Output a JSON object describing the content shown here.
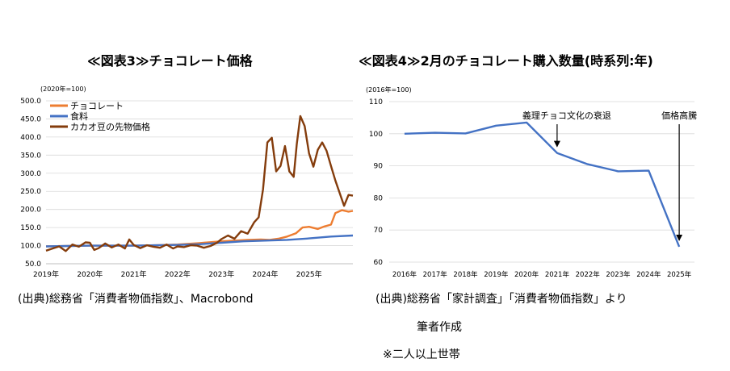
{
  "left": {
    "title": "≪図表3≫チョコレート価格",
    "source": "(出典)総務省「消費者物価指数」、Macrobond"
  },
  "right": {
    "title": "≪図表4≫2月のチョコレート購入数量(時系列:年)",
    "source_line1": "(出典)総務省「家計調査」「消費者物価指数」より",
    "source_line2": "筆者作成",
    "note": "※二人以上世帯"
  },
  "chart_data": [
    {
      "type": "line",
      "title": "≪図表3≫チョコレート価格",
      "unit_label": "(2020年=100)",
      "ylim": [
        50,
        500
      ],
      "yticks": [
        "500.0",
        "450.0",
        "400.0",
        "350.0",
        "300.0",
        "250.0",
        "200.0",
        "150.0",
        "100.0",
        "50.0"
      ],
      "ytick_values": [
        500,
        450,
        400,
        350,
        300,
        250,
        200,
        150,
        100,
        50
      ],
      "xlim": [
        2019,
        2026
      ],
      "xticks": [
        "2019年",
        "2020年",
        "2021年",
        "2022年",
        "2023年",
        "2024年",
        "2025年"
      ],
      "xtick_values": [
        2019,
        2020,
        2021,
        2022,
        2023,
        2024,
        2025
      ],
      "legend_position": "top-left",
      "series": [
        {
          "name": "チョコレート",
          "color": "#ed7d31",
          "x": [
            2019.0,
            2019.5,
            2020.0,
            2020.5,
            2021.0,
            2021.5,
            2022.0,
            2022.5,
            2022.8,
            2023.0,
            2023.3,
            2023.6,
            2023.9,
            2024.1,
            2024.3,
            2024.5,
            2024.7,
            2024.85,
            2025.0,
            2025.2,
            2025.35,
            2025.5,
            2025.6,
            2025.75,
            2025.9,
            2026.0
          ],
          "values": [
            98,
            99,
            100,
            100,
            100,
            101,
            103,
            107,
            110,
            112,
            114,
            116,
            117,
            116,
            119,
            125,
            134,
            150,
            152,
            146,
            153,
            158,
            190,
            198,
            194,
            196
          ]
        },
        {
          "name": "食料",
          "color": "#4472c4",
          "x": [
            2019.0,
            2019.5,
            2020.0,
            2020.5,
            2021.0,
            2021.5,
            2022.0,
            2022.5,
            2023.0,
            2023.5,
            2024.0,
            2024.5,
            2025.0,
            2025.5,
            2026.0
          ],
          "values": [
            98,
            99,
            100,
            100,
            100,
            101,
            102,
            104,
            108,
            112,
            114,
            116,
            120,
            125,
            128
          ]
        },
        {
          "name": "カカオ豆の先物価格",
          "color": "#843c0c",
          "x": [
            2019.0,
            2019.15,
            2019.3,
            2019.45,
            2019.6,
            2019.75,
            2019.9,
            2020.0,
            2020.1,
            2020.2,
            2020.35,
            2020.5,
            2020.65,
            2020.8,
            2020.9,
            2021.0,
            2021.15,
            2021.3,
            2021.45,
            2021.6,
            2021.75,
            2021.9,
            2022.0,
            2022.15,
            2022.3,
            2022.45,
            2022.6,
            2022.75,
            2022.9,
            2023.0,
            2023.15,
            2023.3,
            2023.45,
            2023.6,
            2023.75,
            2023.85,
            2023.95,
            2024.05,
            2024.15,
            2024.25,
            2024.35,
            2024.45,
            2024.55,
            2024.65,
            2024.72,
            2024.8,
            2024.9,
            2025.0,
            2025.1,
            2025.2,
            2025.3,
            2025.4,
            2025.5,
            2025.6,
            2025.7,
            2025.8,
            2025.9,
            2026.0
          ],
          "values": [
            86,
            92,
            98,
            85,
            103,
            97,
            109,
            108,
            88,
            93,
            106,
            95,
            103,
            92,
            117,
            102,
            93,
            101,
            97,
            94,
            103,
            92,
            98,
            96,
            101,
            100,
            94,
            99,
            108,
            118,
            128,
            119,
            140,
            133,
            165,
            178,
            255,
            385,
            398,
            305,
            320,
            375,
            305,
            290,
            380,
            458,
            430,
            355,
            318,
            365,
            385,
            362,
            320,
            280,
            245,
            210,
            240,
            238
          ]
        }
      ]
    },
    {
      "type": "line",
      "title": "≪図表4≫2月のチョコレート購入数量(時系列:年)",
      "unit_label": "(2016年=100)",
      "ylim": [
        60,
        110
      ],
      "yticks": [
        "110",
        "100",
        "90",
        "80",
        "70",
        "60"
      ],
      "ytick_values": [
        110,
        100,
        90,
        80,
        70,
        60
      ],
      "categories": [
        "2016年",
        "2017年",
        "2018年",
        "2019年",
        "2020年",
        "2021年",
        "2022年",
        "2023年",
        "2024年",
        "2025年"
      ],
      "series": [
        {
          "name": "チョコレート購入数量",
          "color": "#4472c4",
          "values": [
            100.0,
            100.3,
            100.1,
            102.5,
            103.5,
            94.0,
            90.5,
            88.3,
            88.5,
            64.8
          ]
        }
      ],
      "annotations": [
        {
          "text": "義理チョコ文化の衰退",
          "category_index": 5
        },
        {
          "text": "価格高騰",
          "category_index": 9
        }
      ]
    }
  ]
}
